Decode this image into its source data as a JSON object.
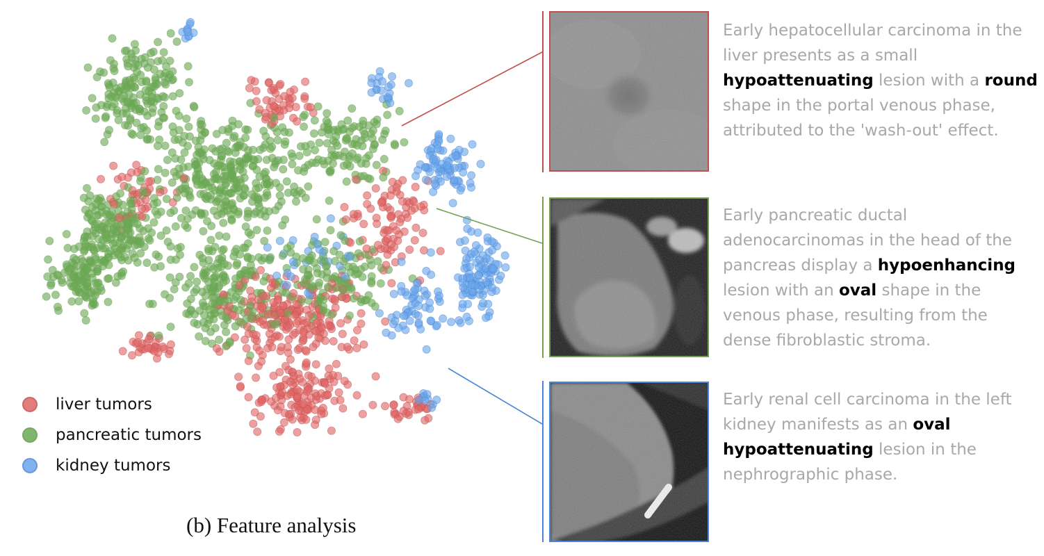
{
  "caption": "(b) Feature analysis",
  "colors": {
    "liver": "#e06666",
    "pancreatic": "#6aaa55",
    "kidney": "#6aa6ea",
    "liver_border": "#c0504d",
    "pancreatic_border": "#70a050",
    "kidney_border": "#4a86d8"
  },
  "legend": [
    {
      "label": "liver tumors",
      "color": "#e06666",
      "border": "#c0504d"
    },
    {
      "label": "pancreatic tumors",
      "color": "#6aaa55",
      "border": "#5f9a45"
    },
    {
      "label": "kidney tumors",
      "color": "#6aa6ea",
      "border": "#4a86d8"
    }
  ],
  "panels": [
    {
      "name": "liver",
      "image": "ct-scan-liver-lesion",
      "border_color": "#c0504d",
      "description": [
        {
          "t": "Early hepatocellular carcinoma in the liver presents as a small ",
          "b": false
        },
        {
          "t": "hypoattenuating",
          "b": true
        },
        {
          "t": " lesion with a ",
          "b": false
        },
        {
          "t": "round",
          "b": true
        },
        {
          "t": " shape in the portal venous phase, attributed to the 'wash-out' effect.",
          "b": false
        }
      ]
    },
    {
      "name": "pancreas",
      "image": "ct-scan-pancreas-lesion",
      "border_color": "#70a050",
      "description": [
        {
          "t": "Early pancreatic ductal adenocarcinomas in the head of the pancreas display a ",
          "b": false
        },
        {
          "t": "hypoenhancing",
          "b": true
        },
        {
          "t": " lesion with an ",
          "b": false
        },
        {
          "t": "oval",
          "b": true
        },
        {
          "t": " shape in the venous phase, resulting from the dense fibroblastic stroma.",
          "b": false
        }
      ]
    },
    {
      "name": "kidney",
      "image": "ct-scan-kidney-lesion",
      "border_color": "#4a86d8",
      "description": [
        {
          "t": "Early renal cell carcinoma in the left kidney manifests as an ",
          "b": false
        },
        {
          "t": "oval",
          "b": true
        },
        {
          "t": " ",
          "b": false
        },
        {
          "t": "hypoattenuating",
          "b": true
        },
        {
          "t": " lesion in the nephrographic phase.",
          "b": false
        }
      ]
    }
  ]
}
